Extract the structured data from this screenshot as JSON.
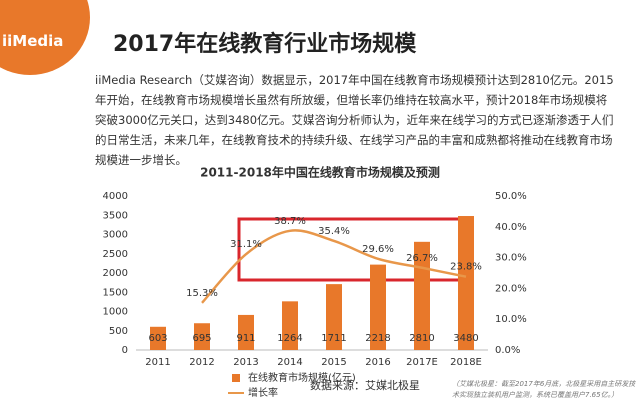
{
  "header": {
    "logo": "iiMedia",
    "title": "2017年在线教育行业市场规模"
  },
  "paragraph": "iiMedia Research（艾媒咨询）数据显示，2017年中国在线教育市场规模预计达到2810亿元。2015年开始，在线教育市场规模增长虽然有所放缓，但增长率仍维持在较高水平，预计2018年市场规模将突破3000亿元关口，达到3480亿元。艾媒咨询分析师认为，近年来在线学习的方式已逐渐渗透于人们的日常生活，未来几年，在线教育技术的持续升级、在线学习产品的丰富和成熟都将推动在线教育市场规模进一步增长。",
  "source": "数据来源：艾媒北极星",
  "source_note": "（艾媒北极星：截至2017年6月底，北极星采用自主研发技术实现独立装机用户监测，系统已覆盖用户7.65亿。）",
  "chart_data": {
    "type": "bar",
    "title": "2011-2018年中国在线教育市场规模及预测",
    "categories": [
      "2011",
      "2012",
      "2013",
      "2014",
      "2015",
      "2016",
      "2017E",
      "2018E"
    ],
    "series": [
      {
        "name": "在线教育市场规模(亿元)",
        "color": "#e8782a",
        "values": [
          603,
          695,
          911,
          1264,
          1711,
          2218,
          2810,
          3480
        ]
      },
      {
        "name": "增长率",
        "type": "line",
        "axis": "y2",
        "color": "#e8974a",
        "values": [
          null,
          15.3,
          31.1,
          38.7,
          35.4,
          29.6,
          26.7,
          23.8
        ],
        "value_labels": [
          null,
          "15.3%",
          "31.1%",
          "38.7%",
          "35.4%",
          "29.6%",
          "26.7%",
          "23.8%"
        ]
      }
    ],
    "ylim": [
      0,
      4000
    ],
    "yticks": [
      0,
      500,
      1000,
      1500,
      2000,
      2500,
      3000,
      3500,
      4000
    ],
    "y2lim": [
      0,
      50
    ],
    "y2ticks": [
      {
        "value": 0,
        "label": "0.0%"
      },
      {
        "value": 10,
        "label": "10.0%"
      },
      {
        "value": 20,
        "label": "20.0%"
      },
      {
        "value": 30,
        "label": "30.0%"
      },
      {
        "value": 40,
        "label": "40.0%"
      },
      {
        "value": 50,
        "label": "50.0%"
      }
    ],
    "grid": false
  }
}
